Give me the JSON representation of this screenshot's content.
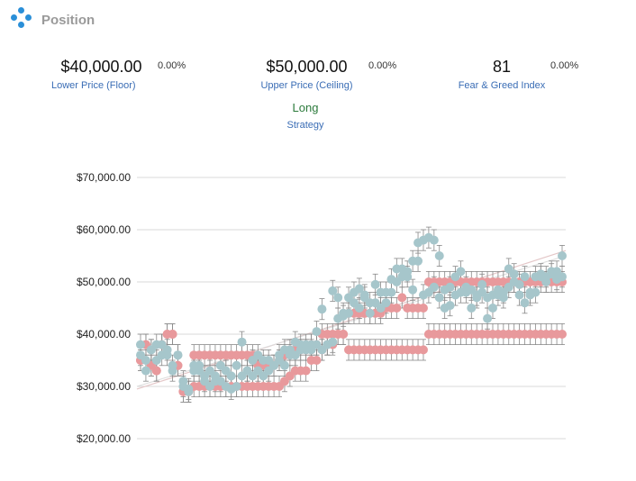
{
  "header": {
    "title": "Position",
    "logo_icon": "four-dots-logo-icon"
  },
  "stats": {
    "lower_price": {
      "value": "$40,000.00",
      "change": "0.00%",
      "label": "Lower Price (Floor)"
    },
    "upper_price": {
      "value": "$50,000.00",
      "change": "0.00%",
      "label": "Upper Price (Ceiling)"
    },
    "fear_greed": {
      "value": "81",
      "change": "0.00%",
      "label": "Fear & Greed Index"
    }
  },
  "strategy": {
    "value": "Long",
    "label": "Strategy"
  },
  "colors": {
    "accent": "#2a8fd8",
    "floor_series": "#e8999c",
    "price_series": "#a6c6cb",
    "error_bar": "#888888",
    "grid": "#d9d9d9"
  },
  "chart_data": {
    "type": "scatter",
    "ylim": [
      20000,
      70000
    ],
    "yticks": [
      20000,
      30000,
      40000,
      50000,
      60000,
      70000
    ],
    "ytick_labels": [
      "$20,000.00",
      "$30,000.00",
      "$40,000.00",
      "$50,000.00",
      "$60,000.00",
      "$70,000.00"
    ],
    "x_count": 80,
    "error": 2000,
    "series": [
      {
        "color": "#e8999c",
        "values": [
          35000,
          38000,
          34000,
          33000,
          38000,
          40000,
          40000,
          34000,
          29000,
          29000,
          36000,
          36000,
          36000,
          36000,
          36000,
          36000,
          36000,
          36000,
          36000,
          36000,
          36000,
          36000,
          30000,
          30000,
          30000,
          30000,
          30000,
          31000,
          32000,
          33000,
          33000,
          33000,
          35000,
          35000,
          37000,
          38000,
          38000,
          40000,
          40000,
          37000,
          37000,
          37000,
          37000,
          37000,
          37000,
          37000,
          37000,
          37000,
          37000,
          37000,
          37000,
          37000,
          37000,
          37000,
          40000,
          40000,
          40000,
          40000,
          40000,
          40000,
          40000,
          40000,
          40000,
          40000,
          40000,
          40000,
          40000,
          40000,
          40000,
          40000,
          40000,
          40000,
          40000,
          40000,
          40000,
          40000,
          40000,
          40000,
          40000,
          40000
        ]
      },
      {
        "color": "#e8999c",
        "values": [
          35000,
          38000,
          34000,
          33000,
          38000,
          40000,
          40000,
          34000,
          29000,
          29000,
          30000,
          30000,
          30000,
          30000,
          30000,
          30000,
          30000,
          30000,
          30000,
          30000,
          30000,
          30000,
          34000,
          34000,
          34000,
          34000,
          35000,
          36000,
          37000,
          37000,
          37000,
          37000,
          38000,
          38000,
          40000,
          40000,
          40000,
          40000,
          40000,
          44000,
          44000,
          44000,
          44000,
          44000,
          44000,
          44000,
          45000,
          45000,
          45000,
          47000,
          45000,
          45000,
          45000,
          45000,
          50000,
          50000,
          50000,
          50000,
          50000,
          50000,
          50000,
          50000,
          50000,
          50000,
          50000,
          50000,
          50000,
          50000,
          50000,
          50000,
          50000,
          50000,
          50000,
          50000,
          50000,
          50000,
          50000,
          50000,
          50000,
          50000
        ]
      },
      {
        "color": "#a6c6cb",
        "values": [
          38000,
          35000,
          37000,
          38000,
          36000,
          37000,
          33000,
          36000,
          30000,
          29000,
          33000,
          34000,
          32000,
          33000,
          31000,
          34000,
          33000,
          32000,
          34000,
          38500,
          33000,
          32000,
          36000,
          35000,
          33000,
          34000,
          35000,
          34000,
          37000,
          38500,
          37000,
          38000,
          38000,
          40500,
          44800,
          38000,
          48300,
          47000,
          43500,
          44000,
          48000,
          48700,
          47500,
          46000,
          49500,
          48000,
          46000,
          50500,
          52500,
          51000,
          52000,
          48500,
          57500,
          58000,
          58500,
          58000,
          55000,
          45000,
          45500,
          51000,
          52000,
          48000,
          48500,
          47000,
          48000,
          43000,
          45000,
          48500,
          47000,
          52500,
          51500,
          47500,
          46000,
          47500,
          48000,
          51000,
          50000,
          51500,
          52000,
          55000
        ]
      },
      {
        "color": "#a6c6cb",
        "values": [
          36000,
          33000,
          37000,
          35000,
          38000,
          36000,
          34000,
          36000,
          31000,
          29500,
          34000,
          33000,
          31000,
          30000,
          32000,
          31000,
          30000,
          29500,
          30000,
          32000,
          33000,
          35000,
          33000,
          32000,
          35000,
          34000,
          36000,
          37000,
          36000,
          36000,
          38000,
          37000,
          37000,
          38000,
          37000,
          38000,
          38500,
          43000,
          44000,
          47000,
          46000,
          45000,
          47000,
          44000,
          46000,
          45000,
          48000,
          48000,
          50000,
          52500,
          51000,
          54000,
          54000,
          47500,
          48000,
          49000,
          47000,
          48500,
          49000,
          47500,
          48000,
          49000,
          45000,
          47500,
          49500,
          47000,
          47500,
          47500,
          48000,
          49000,
          50000,
          49500,
          51000,
          48000,
          51000,
          51500,
          51000,
          52000,
          50500,
          51000
        ]
      }
    ]
  }
}
